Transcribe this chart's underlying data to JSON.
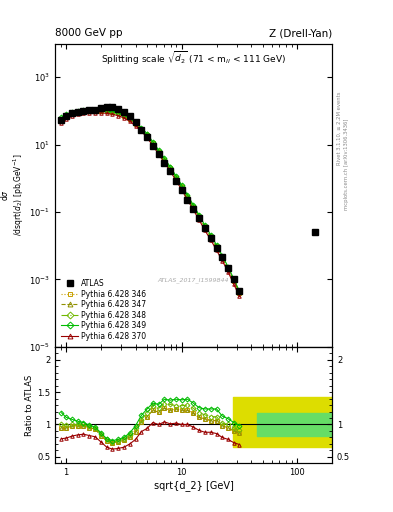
{
  "title_top_left": "8000 GeV pp",
  "title_top_right": "Z (Drell-Yan)",
  "main_title": "Splitting scale $\\sqrt{d_2}$ (71 < m$_{ll}$ < 111 GeV)",
  "xlabel": "sqrt{d_2} [GeV]",
  "ylabel_main": "d$\\sigma$/dsqrt($d_2$) [pb,GeV$^{-1}$]",
  "ylabel_ratio": "Ratio to ATLAS",
  "watermark": "ATLAS_2017_I1599844",
  "xlim": [
    0.8,
    200
  ],
  "ylim_main": [
    1e-05,
    10000.0
  ],
  "ylim_ratio": [
    0.4,
    2.2
  ],
  "atlas_x": [
    0.91,
    1.0,
    1.12,
    1.26,
    1.41,
    1.58,
    1.78,
    2.0,
    2.24,
    2.51,
    2.82,
    3.16,
    3.55,
    3.98,
    4.47,
    5.01,
    5.62,
    6.31,
    7.08,
    7.94,
    8.91,
    10.0,
    11.2,
    12.6,
    14.1,
    15.8,
    17.8,
    20.0,
    22.4,
    25.1,
    28.2,
    31.6,
    141.0
  ],
  "atlas_y": [
    55,
    72,
    85,
    95,
    100,
    105,
    108,
    120,
    130,
    130,
    115,
    95,
    70,
    47,
    28,
    17,
    9.0,
    5.2,
    2.8,
    1.6,
    0.85,
    0.45,
    0.23,
    0.12,
    0.065,
    0.033,
    0.017,
    0.0085,
    0.0045,
    0.0022,
    0.001,
    0.00045,
    0.025
  ],
  "py346_x": [
    0.91,
    1.0,
    1.12,
    1.26,
    1.41,
    1.58,
    1.78,
    2.0,
    2.24,
    2.51,
    2.82,
    3.16,
    3.55,
    3.98,
    4.47,
    5.01,
    5.62,
    6.31,
    7.08,
    7.94,
    8.91,
    10.0,
    11.2,
    12.6,
    14.1,
    15.8,
    17.8,
    20.0,
    22.4,
    25.1,
    28.2,
    31.6
  ],
  "py346_y": [
    52,
    68,
    83,
    93,
    98,
    100,
    100,
    100,
    98,
    93,
    84,
    72,
    57,
    42,
    29,
    19,
    11,
    6.2,
    3.5,
    1.95,
    1.05,
    0.55,
    0.28,
    0.14,
    0.072,
    0.036,
    0.018,
    0.009,
    0.0044,
    0.0021,
    0.0009,
    0.00039
  ],
  "py347_x": [
    0.91,
    1.0,
    1.12,
    1.26,
    1.41,
    1.58,
    1.78,
    2.0,
    2.24,
    2.51,
    2.82,
    3.16,
    3.55,
    3.98,
    4.47,
    5.01,
    5.62,
    6.31,
    7.08,
    7.94,
    8.91,
    10.0,
    11.2,
    12.6,
    14.1,
    15.8,
    17.8,
    20.0,
    22.4,
    25.1,
    28.2,
    31.6
  ],
  "py347_y": [
    52,
    68,
    83,
    93,
    98,
    100,
    100,
    100,
    98,
    93,
    84,
    72,
    57,
    42,
    29,
    19,
    11,
    6.2,
    3.5,
    1.95,
    1.05,
    0.55,
    0.28,
    0.14,
    0.072,
    0.036,
    0.018,
    0.009,
    0.0044,
    0.0021,
    0.0009,
    0.00039
  ],
  "py348_x": [
    0.91,
    1.0,
    1.12,
    1.26,
    1.41,
    1.58,
    1.78,
    2.0,
    2.24,
    2.51,
    2.82,
    3.16,
    3.55,
    3.98,
    4.47,
    5.01,
    5.62,
    6.31,
    7.08,
    7.94,
    8.91,
    10.0,
    11.2,
    12.6,
    14.1,
    15.8,
    17.8,
    20.0,
    22.4,
    25.1,
    28.2,
    31.6
  ],
  "py348_y": [
    55,
    71,
    85,
    95,
    100,
    102,
    102,
    102,
    100,
    95,
    86,
    74,
    59,
    44,
    30,
    20,
    11.5,
    6.5,
    3.7,
    2.1,
    1.1,
    0.58,
    0.3,
    0.15,
    0.077,
    0.038,
    0.019,
    0.0095,
    0.0046,
    0.0022,
    0.00095,
    0.00041
  ],
  "py349_x": [
    0.91,
    1.0,
    1.12,
    1.26,
    1.41,
    1.58,
    1.78,
    2.0,
    2.24,
    2.51,
    2.82,
    3.16,
    3.55,
    3.98,
    4.47,
    5.01,
    5.62,
    6.31,
    7.08,
    7.94,
    8.91,
    10.0,
    11.2,
    12.6,
    14.1,
    15.8,
    17.8,
    20.0,
    22.4,
    25.1,
    28.2,
    31.6
  ],
  "py349_y": [
    65,
    80,
    92,
    100,
    103,
    104,
    104,
    104,
    102,
    97,
    88,
    76,
    61,
    46,
    32,
    21,
    12,
    6.8,
    3.9,
    2.2,
    1.18,
    0.62,
    0.32,
    0.16,
    0.082,
    0.041,
    0.021,
    0.0105,
    0.0051,
    0.0024,
    0.00103,
    0.00044
  ],
  "py370_x": [
    0.91,
    1.0,
    1.12,
    1.26,
    1.41,
    1.58,
    1.78,
    2.0,
    2.24,
    2.51,
    2.82,
    3.16,
    3.55,
    3.98,
    4.47,
    5.01,
    5.62,
    6.31,
    7.08,
    7.94,
    8.91,
    10.0,
    11.2,
    12.6,
    14.1,
    15.8,
    17.8,
    20.0,
    22.4,
    25.1,
    28.2,
    31.6
  ],
  "py370_y": [
    43,
    57,
    70,
    80,
    85,
    87,
    87,
    87,
    85,
    80,
    72,
    62,
    49,
    36,
    25,
    16,
    9.3,
    5.2,
    2.9,
    1.62,
    0.87,
    0.45,
    0.23,
    0.115,
    0.059,
    0.029,
    0.015,
    0.0073,
    0.0036,
    0.0017,
    0.00072,
    0.00031
  ],
  "ratio346_x": [
    0.91,
    1.0,
    1.12,
    1.26,
    1.41,
    1.58,
    1.78,
    2.0,
    2.24,
    2.51,
    2.82,
    3.16,
    3.55,
    3.98,
    4.47,
    5.01,
    5.62,
    6.31,
    7.08,
    7.94,
    8.91,
    10.0,
    11.2,
    12.6,
    14.1,
    15.8,
    17.8,
    20.0,
    22.4,
    25.1,
    28.2,
    31.6
  ],
  "ratio346_y": [
    0.95,
    0.94,
    0.98,
    0.98,
    0.98,
    0.95,
    0.93,
    0.83,
    0.75,
    0.72,
    0.73,
    0.76,
    0.81,
    0.89,
    1.04,
    1.12,
    1.22,
    1.19,
    1.25,
    1.22,
    1.24,
    1.22,
    1.22,
    1.17,
    1.11,
    1.09,
    1.06,
    1.06,
    0.98,
    0.95,
    0.9,
    0.87
  ],
  "ratio347_x": [
    0.91,
    1.0,
    1.12,
    1.26,
    1.41,
    1.58,
    1.78,
    2.0,
    2.24,
    2.51,
    2.82,
    3.16,
    3.55,
    3.98,
    4.47,
    5.01,
    5.62,
    6.31,
    7.08,
    7.94,
    8.91,
    10.0,
    11.2,
    12.6,
    14.1,
    15.8,
    17.8,
    20.0,
    22.4,
    25.1,
    28.2,
    31.6
  ],
  "ratio347_y": [
    0.95,
    0.94,
    0.98,
    0.98,
    0.98,
    0.95,
    0.93,
    0.83,
    0.75,
    0.72,
    0.73,
    0.76,
    0.81,
    0.89,
    1.04,
    1.12,
    1.22,
    1.19,
    1.25,
    1.22,
    1.24,
    1.22,
    1.22,
    1.17,
    1.11,
    1.09,
    1.06,
    1.06,
    0.98,
    0.95,
    0.9,
    0.87
  ],
  "ratio348_x": [
    0.91,
    1.0,
    1.12,
    1.26,
    1.41,
    1.58,
    1.78,
    2.0,
    2.24,
    2.51,
    2.82,
    3.16,
    3.55,
    3.98,
    4.47,
    5.01,
    5.62,
    6.31,
    7.08,
    7.94,
    8.91,
    10.0,
    11.2,
    12.6,
    14.1,
    15.8,
    17.8,
    20.0,
    22.4,
    25.1,
    28.2,
    31.6
  ],
  "ratio348_y": [
    1.0,
    0.99,
    1.0,
    1.0,
    1.0,
    0.97,
    0.94,
    0.85,
    0.77,
    0.73,
    0.75,
    0.78,
    0.84,
    0.94,
    1.07,
    1.18,
    1.28,
    1.25,
    1.32,
    1.31,
    1.29,
    1.29,
    1.3,
    1.25,
    1.18,
    1.15,
    1.12,
    1.12,
    1.02,
    1.0,
    0.95,
    0.91
  ],
  "ratio349_x": [
    0.91,
    1.0,
    1.12,
    1.26,
    1.41,
    1.58,
    1.78,
    2.0,
    2.24,
    2.51,
    2.82,
    3.16,
    3.55,
    3.98,
    4.47,
    5.01,
    5.62,
    6.31,
    7.08,
    7.94,
    8.91,
    10.0,
    11.2,
    12.6,
    14.1,
    15.8,
    17.8,
    20.0,
    22.4,
    25.1,
    28.2,
    31.6
  ],
  "ratio349_y": [
    1.18,
    1.11,
    1.08,
    1.05,
    1.03,
    0.99,
    0.96,
    0.87,
    0.78,
    0.75,
    0.77,
    0.8,
    0.87,
    0.98,
    1.14,
    1.24,
    1.33,
    1.31,
    1.39,
    1.375,
    1.39,
    1.38,
    1.39,
    1.33,
    1.26,
    1.24,
    1.24,
    1.24,
    1.13,
    1.09,
    1.03,
    0.98
  ],
  "ratio370_x": [
    0.91,
    1.0,
    1.12,
    1.26,
    1.41,
    1.58,
    1.78,
    2.0,
    2.24,
    2.51,
    2.82,
    3.16,
    3.55,
    3.98,
    4.47,
    5.01,
    5.62,
    6.31,
    7.08,
    7.94,
    8.91,
    10.0,
    11.2,
    12.6,
    14.1,
    15.8,
    17.8,
    20.0,
    22.4,
    25.1,
    28.2,
    31.6
  ],
  "ratio370_y": [
    0.78,
    0.79,
    0.82,
    0.84,
    0.85,
    0.83,
    0.81,
    0.73,
    0.65,
    0.62,
    0.63,
    0.65,
    0.7,
    0.77,
    0.89,
    0.94,
    1.03,
    1.0,
    1.04,
    1.01,
    1.02,
    1.0,
    1.0,
    0.96,
    0.91,
    0.88,
    0.88,
    0.86,
    0.8,
    0.77,
    0.72,
    0.69
  ],
  "band_yellow_xlo": 28.0,
  "band_yellow_xhi": 200.0,
  "band_yellow_ylo": 0.65,
  "band_yellow_yhi": 1.42,
  "band_green_xlo": 45.0,
  "band_green_xhi": 200.0,
  "band_green_ylo": 0.82,
  "band_green_yhi": 1.18,
  "color_346": "#c8a000",
  "color_347": "#909000",
  "color_348": "#70b800",
  "color_349": "#00bb00",
  "color_370": "#990000",
  "color_atlas": "#000000",
  "color_yellow_band": "#dddd00",
  "color_green_band": "#66dd66",
  "bg_color": "#ffffff"
}
